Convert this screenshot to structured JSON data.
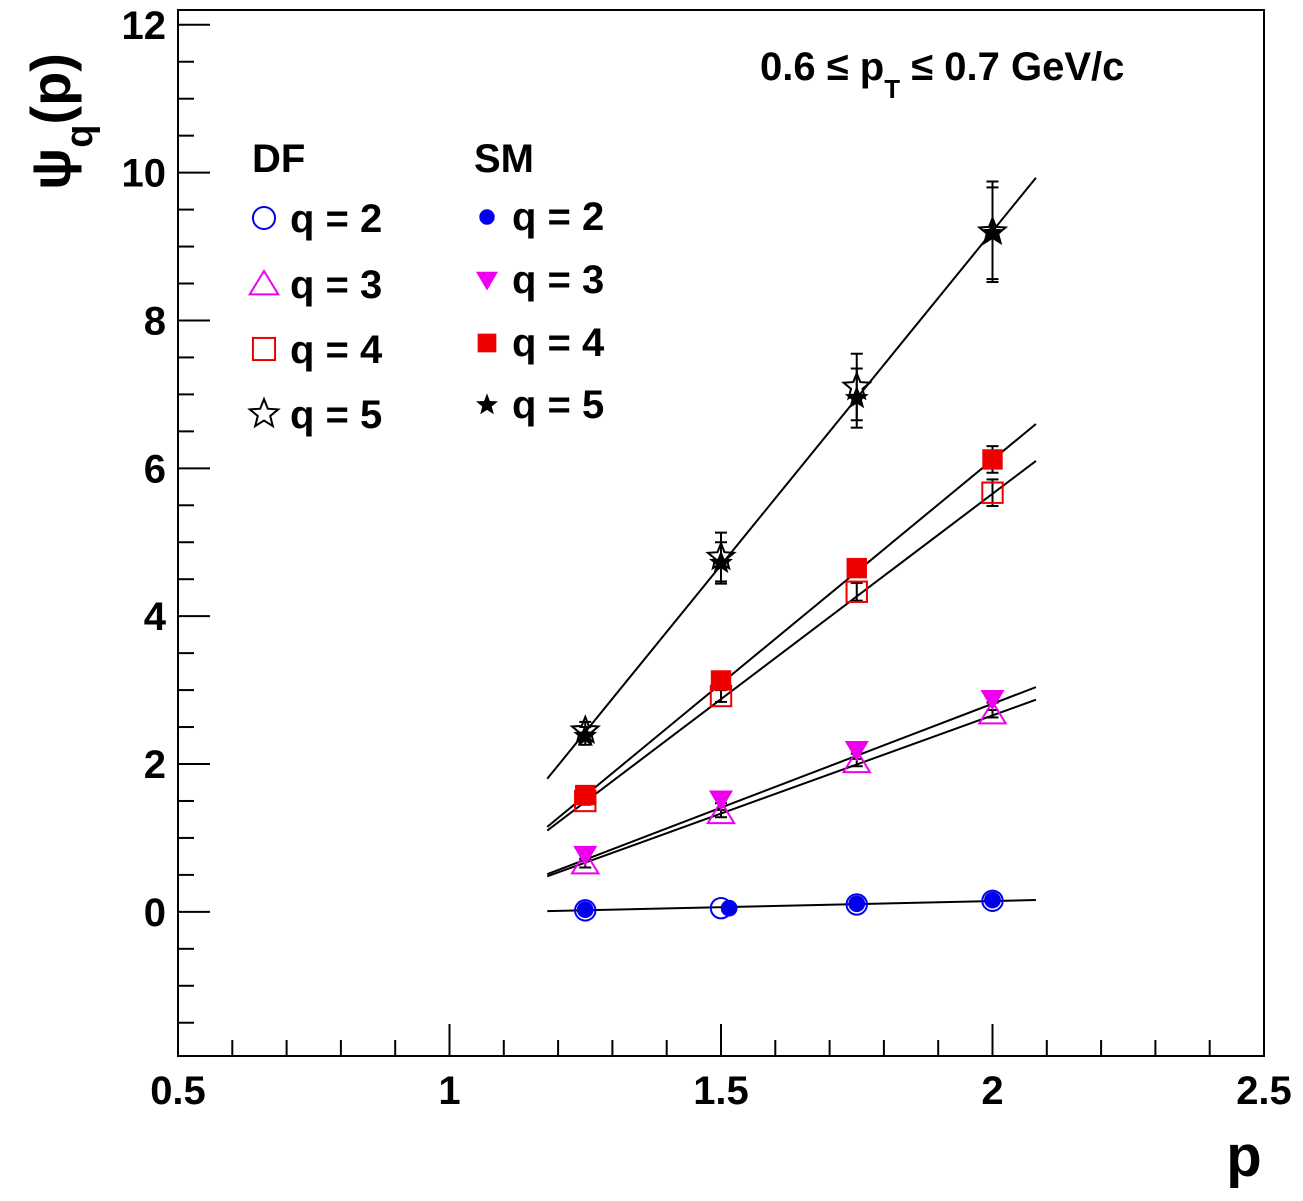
{
  "chart_data": {
    "type": "scatter",
    "title": "0.6 ≤ p_T ≤ 0.7 GeV/c",
    "annotation": {
      "main": "0.6  ≤ p",
      "sub": "T",
      "rest": " ≤ 0.7 GeV/c"
    },
    "xlabel": "p",
    "ylabel": {
      "main": "ψ",
      "sub": "q",
      "rest": "(p)"
    },
    "xlim": [
      0.5,
      2.5
    ],
    "ylim": [
      -1.95,
      12.2
    ],
    "x_ticks": [
      0.5,
      1,
      1.5,
      2,
      2.5
    ],
    "x_tick_labels": [
      "0.5",
      "1",
      "1.5",
      "2",
      "2.5"
    ],
    "y_ticks": [
      0,
      2,
      4,
      6,
      8,
      10,
      12
    ],
    "y_tick_labels": [
      "0",
      "2",
      "4",
      "6",
      "8",
      "10",
      "12"
    ],
    "grid": false,
    "legend": {
      "position": "top-left",
      "groups": [
        {
          "heading": "DF",
          "entries": [
            {
              "label": "q = 2",
              "marker": "open-circle",
              "color": "#0000ee"
            },
            {
              "label": "q = 3",
              "marker": "open-triangle-up",
              "color": "#ee00ee"
            },
            {
              "label": "q = 4",
              "marker": "open-square",
              "color": "#ee0000"
            },
            {
              "label": "q = 5",
              "marker": "open-star",
              "color": "#000000"
            }
          ]
        },
        {
          "heading": "SM",
          "entries": [
            {
              "label": "q = 2",
              "marker": "filled-circle",
              "color": "#0000ee"
            },
            {
              "label": "q = 3",
              "marker": "filled-triangle-down",
              "color": "#ee00ee"
            },
            {
              "label": "q = 4",
              "marker": "filled-square",
              "color": "#ee0000"
            },
            {
              "label": "q = 5",
              "marker": "filled-star",
              "color": "#000000"
            }
          ]
        }
      ]
    },
    "series": [
      {
        "name": "DF q = 2",
        "marker": "open-circle",
        "color": "#0000ee",
        "x": [
          1.25,
          1.5,
          1.75,
          2.0
        ],
        "y": [
          0.02,
          0.05,
          0.1,
          0.15
        ],
        "err": [
          0,
          0,
          0,
          0
        ]
      },
      {
        "name": "SM q = 2",
        "marker": "filled-circle",
        "color": "#0000ee",
        "x": [
          1.25,
          1.515,
          1.75,
          2.0
        ],
        "y": [
          0.03,
          0.05,
          0.11,
          0.16
        ],
        "err": [
          0,
          0,
          0,
          0
        ]
      },
      {
        "name": "DF q = 3",
        "marker": "open-triangle-up",
        "color": "#ee00ee",
        "x": [
          1.25,
          1.5,
          1.75,
          2.0
        ],
        "y": [
          0.65,
          1.33,
          2.02,
          2.68
        ],
        "err": [
          0.05,
          0.05,
          0.05,
          0.05
        ]
      },
      {
        "name": "SM q = 3",
        "marker": "filled-triangle-down",
        "color": "#ee00ee",
        "x": [
          1.25,
          1.5,
          1.75,
          2.0
        ],
        "y": [
          0.77,
          1.52,
          2.19,
          2.88
        ],
        "err": [
          0.05,
          0.05,
          0.05,
          0.05
        ]
      },
      {
        "name": "DF q = 4",
        "marker": "open-square",
        "color": "#ee0000",
        "x": [
          1.25,
          1.5,
          1.75,
          2.0
        ],
        "y": [
          1.5,
          2.92,
          4.33,
          5.67
        ],
        "err": [
          0.05,
          0.08,
          0.12,
          0.18
        ]
      },
      {
        "name": "SM q = 4",
        "marker": "filled-square",
        "color": "#ee0000",
        "x": [
          1.25,
          1.5,
          1.75,
          2.0
        ],
        "y": [
          1.58,
          3.13,
          4.65,
          6.12
        ],
        "err": [
          0.05,
          0.08,
          0.12,
          0.18
        ]
      },
      {
        "name": "DF q = 5",
        "marker": "open-star",
        "color": "#000000",
        "x": [
          1.25,
          1.5,
          1.75,
          2.0
        ],
        "y": [
          2.45,
          4.8,
          7.1,
          9.2
        ],
        "err": [
          0.12,
          0.33,
          0.45,
          0.68
        ]
      },
      {
        "name": "SM q = 5",
        "marker": "filled-star",
        "color": "#000000",
        "x": [
          1.25,
          1.5,
          1.75,
          2.0
        ],
        "y": [
          2.38,
          4.72,
          6.95,
          9.18
        ],
        "err": [
          0.12,
          0.28,
          0.4,
          0.62
        ]
      }
    ],
    "fits": [
      {
        "name": "fit q = 2",
        "x": [
          1.18,
          2.08
        ],
        "y": [
          0.01,
          0.16
        ]
      },
      {
        "name": "fit DF q = 3",
        "x": [
          1.18,
          2.08
        ],
        "y": [
          0.48,
          2.87
        ]
      },
      {
        "name": "fit SM q = 3",
        "x": [
          1.18,
          2.08
        ],
        "y": [
          0.51,
          3.04
        ]
      },
      {
        "name": "fit DF q = 4",
        "x": [
          1.18,
          2.08
        ],
        "y": [
          1.1,
          6.1
        ]
      },
      {
        "name": "fit SM q = 4",
        "x": [
          1.18,
          2.08
        ],
        "y": [
          1.15,
          6.6
        ]
      },
      {
        "name": "fit q = 5",
        "x": [
          1.18,
          2.08
        ],
        "y": [
          1.8,
          9.93
        ]
      }
    ]
  }
}
